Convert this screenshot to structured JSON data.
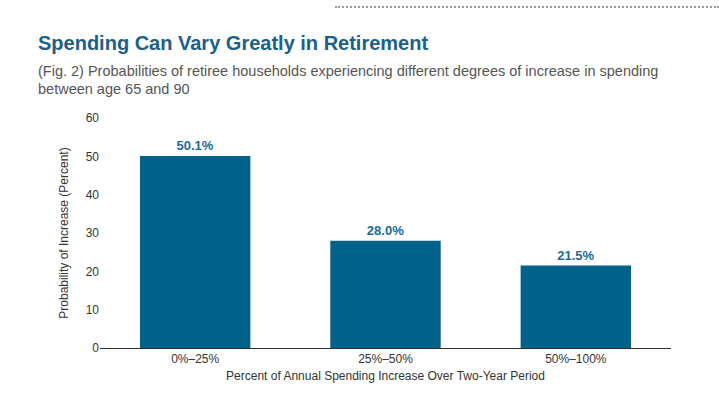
{
  "chart_data": {
    "type": "bar",
    "title": "Spending Can Vary Greatly in Retirement",
    "subtitle": "(Fig. 2) Probabilities of retiree households experiencing different degrees of increase in spending between age 65 and 90",
    "x_label": "Percent of Annual Spending Increase Over Two-Year Period",
    "y_label": "Probability of Increase (Percent)",
    "categories": [
      "0%–25%",
      "25%–50%",
      "50%–100%"
    ],
    "values": [
      50.1,
      28.0,
      21.5
    ],
    "value_labels": [
      "50.1%",
      "28.0%",
      "21.5%"
    ],
    "color": "#00628a",
    "ylim": [
      0,
      60
    ],
    "yticks": [
      0,
      10,
      20,
      30,
      40,
      50,
      60
    ],
    "grid": false,
    "data_labels": true
  }
}
